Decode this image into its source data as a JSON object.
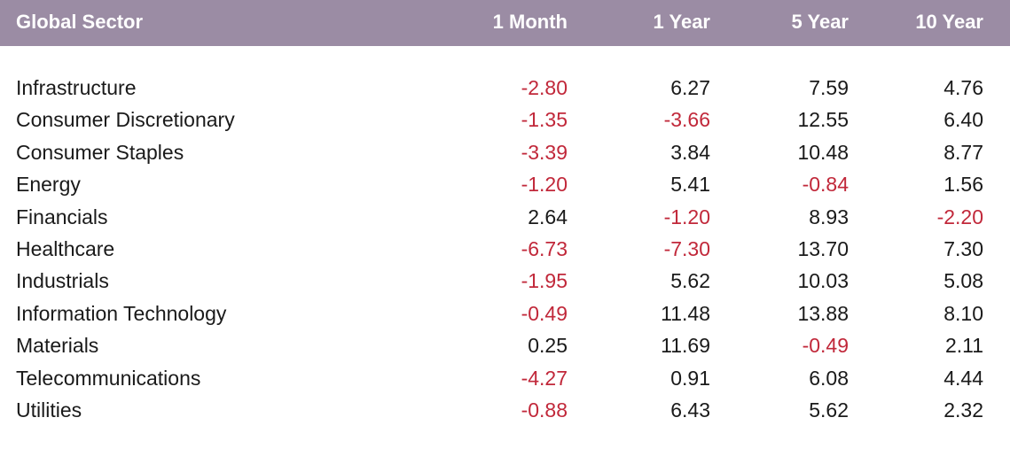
{
  "colors": {
    "header_bg": "#9b8ca4",
    "header_text": "#ffffff",
    "positive_text": "#1a1a1a",
    "negative_text": "#c1283a"
  },
  "chart_data": {
    "type": "table",
    "columns": [
      "Global Sector",
      "1 Month",
      "1 Year",
      "5 Year",
      "10 Year"
    ],
    "rows": [
      [
        "Infrastructure",
        "-2.80",
        "6.27",
        "7.59",
        "4.76"
      ],
      [
        "Consumer Discretionary",
        "-1.35",
        "-3.66",
        "12.55",
        "6.40"
      ],
      [
        "Consumer Staples",
        "-3.39",
        "3.84",
        "10.48",
        "8.77"
      ],
      [
        "Energy",
        "-1.20",
        "5.41",
        "-0.84",
        "1.56"
      ],
      [
        "Financials",
        "2.64",
        "-1.20",
        "8.93",
        "-2.20"
      ],
      [
        "Healthcare",
        "-6.73",
        "-7.30",
        "13.70",
        "7.30"
      ],
      [
        "Industrials",
        "-1.95",
        "5.62",
        "10.03",
        "5.08"
      ],
      [
        "Information Technology",
        "-0.49",
        "11.48",
        "13.88",
        "8.10"
      ],
      [
        "Materials",
        "0.25",
        "11.69",
        "-0.49",
        "2.11"
      ],
      [
        "Telecommunications",
        "-4.27",
        "0.91",
        "6.08",
        "4.44"
      ],
      [
        "Utilities",
        "-0.88",
        "6.43",
        "5.62",
        "2.32"
      ]
    ]
  }
}
